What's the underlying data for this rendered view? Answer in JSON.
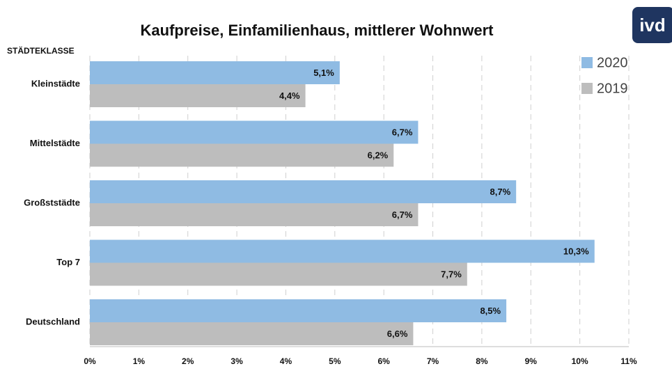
{
  "logo": "ivd",
  "chart_data": {
    "type": "barh",
    "title": "Kaufpreise, Einfamilienhaus, mittlerer Wohnwert",
    "y_label": "STÄDTEKLASSE",
    "categories": [
      "Kleinstädte",
      "Mittelstädte",
      "Großststädte",
      "Top 7",
      "Deutschland"
    ],
    "series": [
      {
        "name": "2020",
        "color": "#8fbbe3",
        "values": [
          5.1,
          6.7,
          8.7,
          10.3,
          8.5
        ],
        "value_labels": [
          "5,1%",
          "6,7%",
          "8,7%",
          "10,3%",
          "8,5%"
        ]
      },
      {
        "name": "2019",
        "color": "#bdbdbd",
        "values": [
          4.4,
          6.2,
          6.7,
          7.7,
          6.6
        ],
        "value_labels": [
          "4,4%",
          "6,2%",
          "6,7%",
          "7,7%",
          "6,6%"
        ]
      }
    ],
    "xlim": [
      0,
      11
    ],
    "xticks": [
      {
        "value": 0,
        "label": "0%"
      },
      {
        "value": 1,
        "label": "1%"
      },
      {
        "value": 2,
        "label": "2%"
      },
      {
        "value": 3,
        "label": "3%"
      },
      {
        "value": 4,
        "label": "4%"
      },
      {
        "value": 5,
        "label": "5%"
      },
      {
        "value": 6,
        "label": "6%"
      },
      {
        "value": 7,
        "label": "7%"
      },
      {
        "value": 8,
        "label": "8%"
      },
      {
        "value": 9,
        "label": "9%"
      },
      {
        "value": 10,
        "label": "10%"
      },
      {
        "value": 11,
        "label": "11%"
      }
    ],
    "grid": true,
    "legend": "top-right"
  }
}
